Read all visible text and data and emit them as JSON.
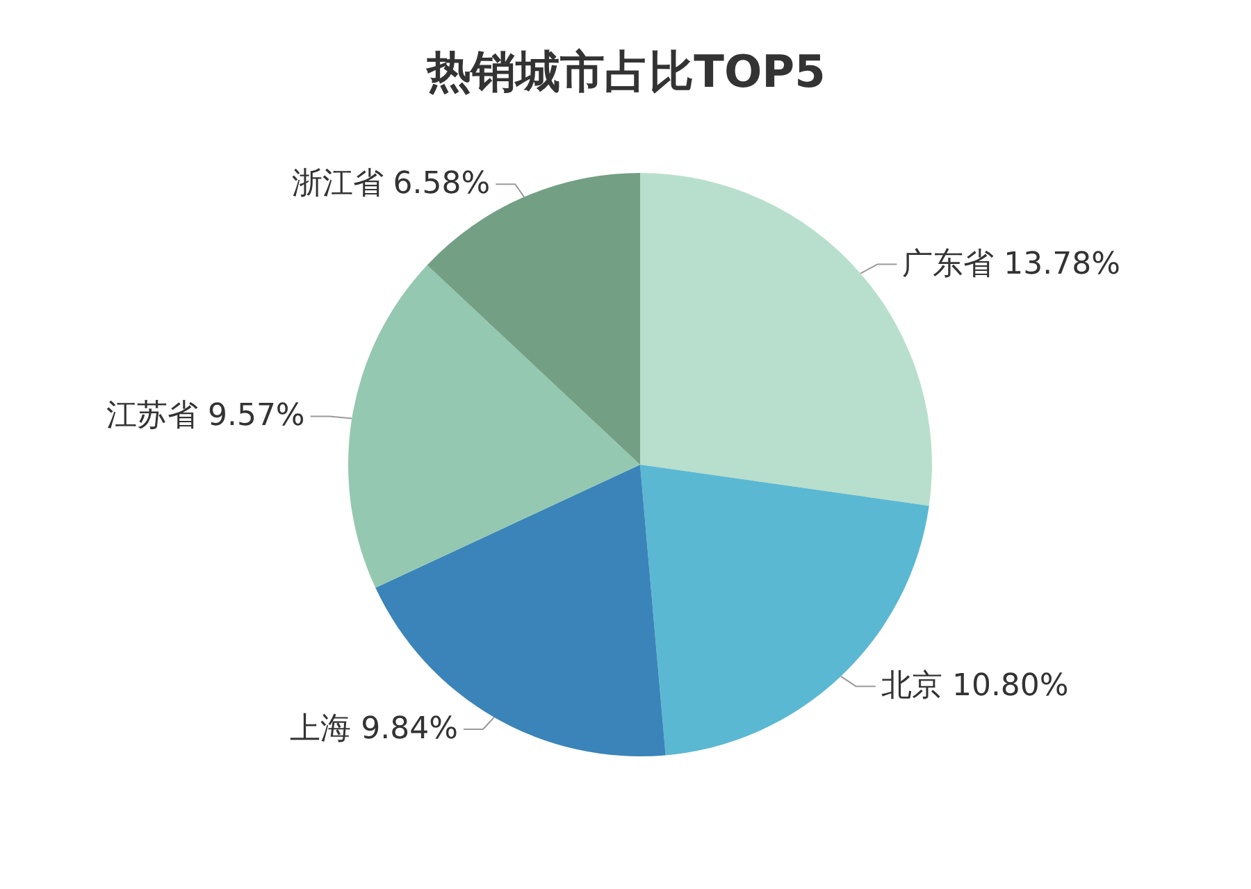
{
  "chart_data": {
    "type": "pie",
    "title": "热销城市占比TOP5",
    "categories": [
      "广东省",
      "北京",
      "上海",
      "江苏省",
      "浙江省"
    ],
    "values": [
      13.78,
      10.8,
      9.84,
      9.57,
      6.58
    ],
    "value_labels": [
      "13.78%",
      "10.80%",
      "9.84%",
      "9.57%",
      "6.58%"
    ],
    "colors": [
      "#b8dfcd",
      "#5bb8d2",
      "#3a84b9",
      "#94c8b0",
      "#739f84"
    ]
  }
}
